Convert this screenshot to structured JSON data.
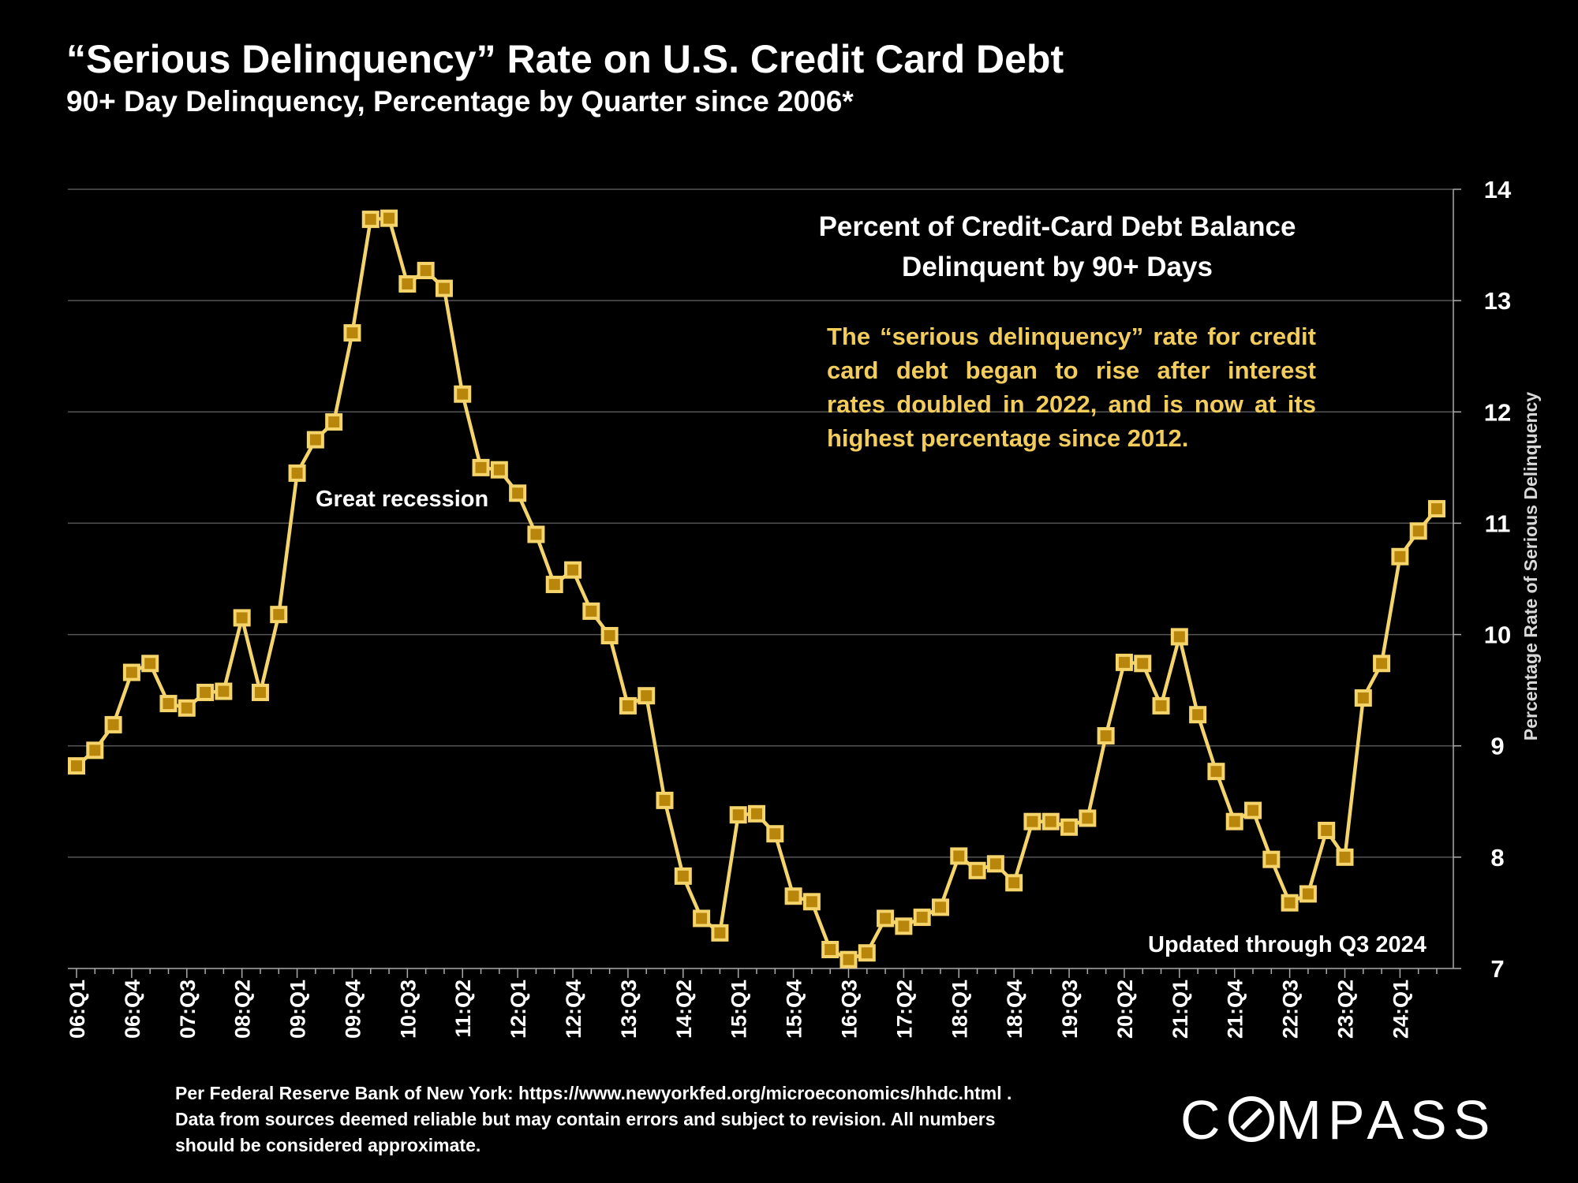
{
  "title": "“Serious Delinquency” Rate on U.S. Credit Card Debt",
  "subtitle": "90+ Day Delinquency, Percentage by Quarter since 2006*",
  "box_title": [
    "Percent of Credit-Card Debt Balance",
    "Delinquent by 90+ Days"
  ],
  "note": "The “serious delinquency” rate for credit card debt began to rise after interest rates doubled in 2022, and is now at its highest percentage since 2012.",
  "annotation_recession": "Great recession",
  "updated": "Updated through Q3 2024",
  "footer": [
    "Per Federal Reserve Bank of New York: https://www.newyorkfed.org/microeconomics/hhdc.html .",
    "Data from sources deemed reliable but may contain errors and subject to revision. All numbers",
    "should be considered approximate."
  ],
  "logo": {
    "text_before": "C",
    "text_after": "MPASS"
  },
  "colors": {
    "line": "#f5d56b",
    "marker_fill": "#b8860b",
    "marker_edge": "#f5d56b",
    "grid": "#555555",
    "background": "#000000"
  },
  "chart_data": {
    "type": "line",
    "ylabel": "Percentage Rate of Serious Delinquency",
    "ylim": [
      7,
      14
    ],
    "yticks": [
      7,
      8,
      9,
      10,
      11,
      12,
      13,
      14
    ],
    "y_axis_side": "right",
    "grid": true,
    "xtick_labels": [
      "06:Q1",
      "06:Q4",
      "07:Q3",
      "08:Q2",
      "09:Q1",
      "09:Q4",
      "10:Q3",
      "11:Q2",
      "12:Q1",
      "12:Q4",
      "13:Q3",
      "14:Q2",
      "15:Q1",
      "15:Q4",
      "16:Q3",
      "17:Q2",
      "18:Q1",
      "18:Q4",
      "19:Q3",
      "20:Q2",
      "21:Q1",
      "21:Q4",
      "22:Q3",
      "23:Q2",
      "24:Q1"
    ],
    "xtick_every": 3,
    "series": [
      {
        "name": "90+ Day Delinquency",
        "values": [
          8.82,
          8.96,
          9.19,
          9.66,
          9.74,
          9.38,
          9.34,
          9.48,
          9.49,
          10.15,
          9.48,
          10.18,
          11.45,
          11.75,
          11.91,
          12.71,
          13.73,
          13.74,
          13.15,
          13.27,
          13.11,
          12.16,
          11.5,
          11.48,
          11.27,
          10.9,
          10.45,
          10.58,
          10.21,
          9.99,
          9.36,
          9.45,
          8.51,
          7.83,
          7.45,
          7.32,
          8.38,
          8.39,
          8.21,
          7.65,
          7.6,
          7.17,
          7.08,
          7.14,
          7.45,
          7.38,
          7.46,
          7.55,
          8.01,
          7.88,
          7.94,
          7.77,
          8.32,
          8.32,
          8.27,
          8.35,
          9.09,
          9.75,
          9.74,
          9.36,
          9.98,
          9.28,
          8.77,
          8.32,
          8.42,
          7.98,
          7.59,
          7.67,
          8.24,
          8.0,
          9.43,
          9.74,
          10.7,
          10.93,
          11.13
        ]
      }
    ]
  }
}
